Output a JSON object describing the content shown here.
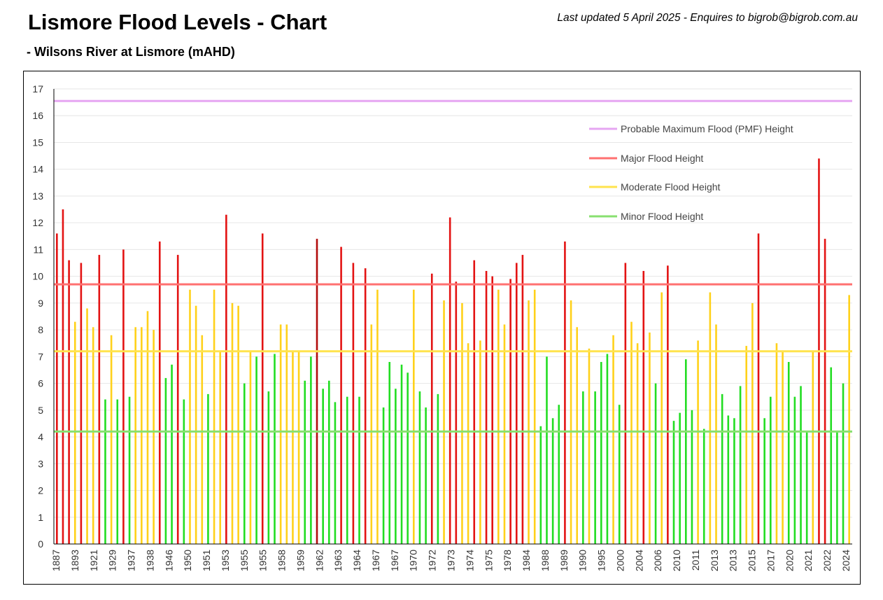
{
  "header": {
    "title": "Lismore Flood Levels - Chart",
    "subtitle": "- Wilsons River at Lismore (mAHD)",
    "updated": "Last updated 5 April 2025 - Enquires to bigrob@bigrob.com.au"
  },
  "colors": {
    "major": "#e31313",
    "major_dark": "#b20c0c",
    "moderate": "#ffd11a",
    "minor": "#22dd22",
    "pmf_line": "#e6a6f2",
    "major_line": "#ff7070",
    "moderate_line": "#ffe34d",
    "minor_line": "#88e070",
    "grid": "#e6e6e6"
  },
  "chart_data": {
    "type": "bar",
    "title": "",
    "xlabel": "",
    "ylabel": "",
    "ylim": [
      0,
      17
    ],
    "yticks": [
      0,
      1,
      2,
      3,
      4,
      5,
      6,
      7,
      8,
      9,
      10,
      11,
      12,
      13,
      14,
      15,
      16,
      17
    ],
    "grid": true,
    "legend_position": "top-right",
    "x_tick_labels": [
      "1887",
      "1893",
      "1921",
      "1929",
      "1937",
      "1938",
      "1946",
      "1950",
      "1951",
      "1953",
      "1955",
      "1955",
      "1958",
      "1959",
      "1962",
      "1963",
      "1964",
      "1967",
      "1967",
      "1970",
      "1972",
      "1973",
      "1974",
      "1975",
      "1978",
      "1984",
      "1988",
      "1989",
      "1990",
      "1995",
      "2000",
      "2004",
      "2006",
      "2010",
      "2011",
      "2013",
      "2013",
      "2015",
      "2017",
      "2020",
      "2021",
      "2022",
      "2024"
    ],
    "values": [
      11.6,
      12.5,
      10.6,
      8.3,
      10.5,
      8.8,
      8.1,
      10.8,
      5.4,
      7.8,
      5.4,
      11.0,
      5.5,
      8.1,
      8.1,
      8.7,
      8.0,
      11.3,
      6.2,
      6.7,
      10.8,
      5.4,
      9.5,
      8.9,
      7.8,
      5.6,
      9.5,
      7.2,
      12.3,
      9.0,
      8.9,
      6.0,
      7.2,
      7.0,
      11.6,
      5.7,
      7.1,
      8.2,
      8.2,
      7.2,
      7.2,
      6.1,
      7.0,
      11.4,
      5.8,
      6.1,
      5.3,
      11.1,
      5.5,
      10.5,
      5.5,
      10.3,
      8.2,
      9.5,
      5.1,
      6.8,
      5.8,
      6.7,
      6.4,
      9.5,
      5.7,
      5.1,
      10.1,
      5.6,
      9.1,
      12.2,
      9.8,
      9.0,
      7.5,
      10.6,
      7.6,
      10.2,
      10.0,
      9.5,
      8.2,
      9.9,
      10.5,
      10.8,
      9.1,
      9.5,
      4.4,
      7.0,
      4.7,
      5.2,
      11.3,
      9.1,
      8.1,
      5.7,
      7.3,
      5.7,
      6.8,
      7.1,
      7.8,
      5.2,
      10.5,
      8.3,
      7.5,
      10.2,
      7.9,
      6.0,
      9.4,
      10.4,
      4.6,
      4.9,
      6.9,
      5.0,
      7.6,
      4.3,
      9.4,
      8.2,
      5.6,
      4.8,
      4.7,
      5.9,
      7.4,
      9.0,
      11.6,
      4.7,
      5.5,
      7.5,
      7.2,
      6.8,
      5.5,
      5.9,
      4.2,
      7.2,
      14.4,
      11.4,
      6.6,
      4.2,
      6.0,
      9.3
    ],
    "dark_bars": [
      43
    ],
    "series": [
      {
        "name": "Probable Maximum Flood (PMF) Height",
        "kind": "line",
        "value": 16.55,
        "color_key": "pmf_line"
      },
      {
        "name": "Major Flood Height",
        "kind": "line",
        "value": 9.7,
        "color_key": "major_line"
      },
      {
        "name": "Moderate Flood Height",
        "kind": "line",
        "value": 7.2,
        "color_key": "moderate_line"
      },
      {
        "name": "Minor Flood Height",
        "kind": "line",
        "value": 4.2,
        "color_key": "minor_line"
      }
    ]
  }
}
